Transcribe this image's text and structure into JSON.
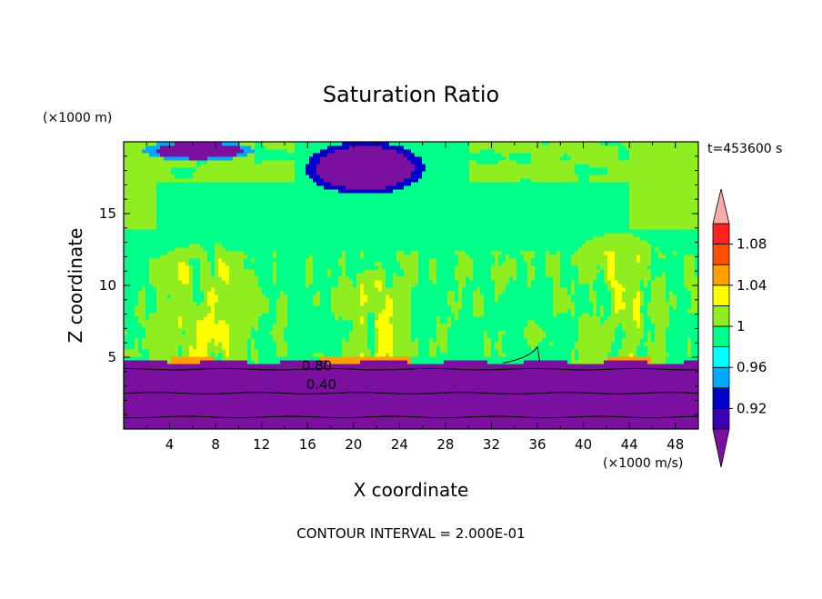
{
  "chart_data": {
    "type": "contour",
    "title": "Saturation Ratio",
    "xlabel": "X coordinate",
    "ylabel": "Z coordinate",
    "x_units": "(x1000 m/s)",
    "y_units": "(x1000 m)",
    "time_label": "t=453600 s",
    "footer": "CONTOUR INTERVAL = 2.000E-01",
    "xlim": [
      0,
      50
    ],
    "ylim": [
      0,
      20
    ],
    "x_ticks": [
      "4",
      "8",
      "12",
      "16",
      "20",
      "24",
      "28",
      "32",
      "36",
      "40",
      "44",
      "48"
    ],
    "y_ticks": [
      "5",
      "10",
      "15"
    ],
    "contour_labels": [
      {
        "text": "0.80",
        "x": 16.8,
        "y": 4.4
      },
      {
        "text": "0.40",
        "x": 17.2,
        "y": 3.1
      }
    ],
    "contour_levels": [
      0.2,
      0.4,
      0.6,
      0.8
    ],
    "colorbar": {
      "levels": [
        0.9,
        0.92,
        0.94,
        0.96,
        0.98,
        1.0,
        1.02,
        1.04,
        1.06,
        1.08,
        1.1
      ],
      "tick_labels": [
        "0.92",
        "0.96",
        "1",
        "1.04",
        "1.08"
      ],
      "tick_values": [
        0.92,
        0.96,
        1.0,
        1.04,
        1.08
      ],
      "colors": [
        "#7a0fa0",
        "#3b00b0",
        "#0000c8",
        "#00aaff",
        "#00ffff",
        "#00ff88",
        "#90ee20",
        "#ffff00",
        "#ffa000",
        "#ff5000",
        "#ff2020",
        "#ffaaaa"
      ],
      "extend": "both"
    }
  }
}
